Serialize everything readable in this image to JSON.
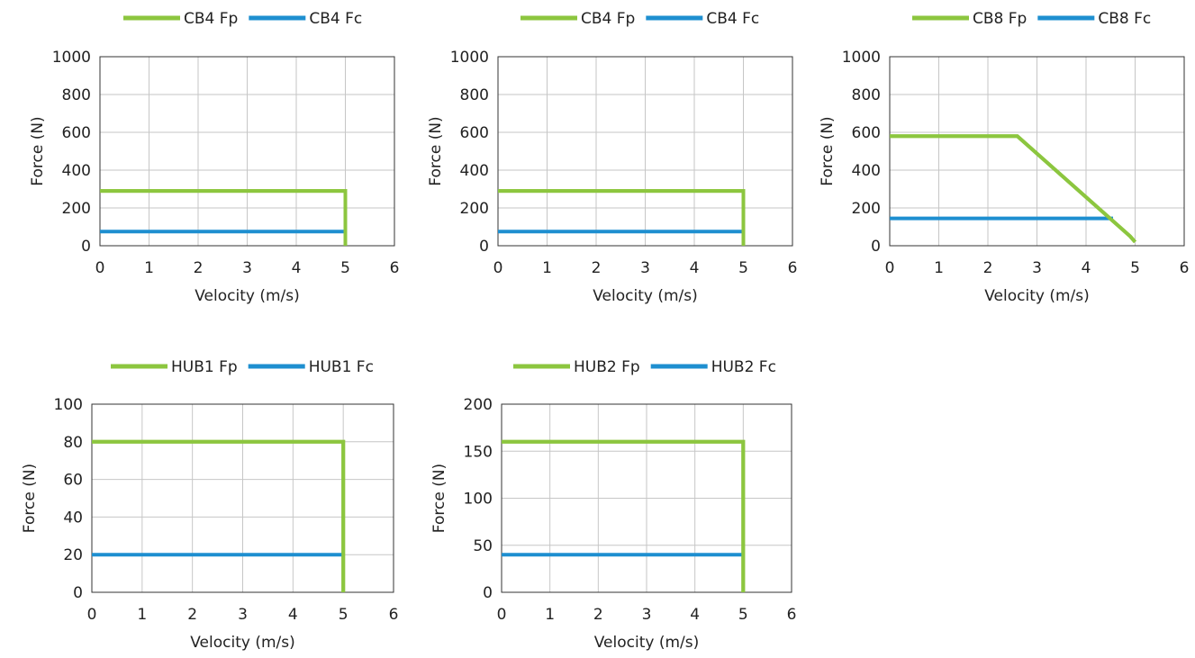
{
  "chart_data": [
    {
      "type": "line",
      "xlabel": "Velocity (m/s)",
      "ylabel": "Force (N)",
      "xlim": [
        0,
        6
      ],
      "ylim": [
        0,
        1000
      ],
      "xticks": [
        0,
        1,
        2,
        3,
        4,
        5,
        6
      ],
      "yticks": [
        0,
        200,
        400,
        600,
        800,
        1000
      ],
      "grid": true,
      "legend_position": "top",
      "series": [
        {
          "name": "CB4 Fp",
          "color": "#8cc63f",
          "points": [
            [
              0,
              290
            ],
            [
              5,
              290
            ],
            [
              5,
              0
            ]
          ]
        },
        {
          "name": "CB4 Fc",
          "color": "#1e8fd0",
          "points": [
            [
              0,
              75
            ],
            [
              5,
              75
            ]
          ]
        }
      ]
    },
    {
      "type": "line",
      "xlabel": "Velocity (m/s)",
      "ylabel": "Force (N)",
      "xlim": [
        0,
        6
      ],
      "ylim": [
        0,
        1000
      ],
      "xticks": [
        0,
        1,
        2,
        3,
        4,
        5,
        6
      ],
      "yticks": [
        0,
        200,
        400,
        600,
        800,
        1000
      ],
      "grid": true,
      "legend_position": "top",
      "series": [
        {
          "name": "CB4 Fp",
          "color": "#8cc63f",
          "points": [
            [
              0,
              290
            ],
            [
              5,
              290
            ],
            [
              5,
              0
            ]
          ]
        },
        {
          "name": "CB4 Fc",
          "color": "#1e8fd0",
          "points": [
            [
              0,
              75
            ],
            [
              5,
              75
            ]
          ]
        }
      ]
    },
    {
      "type": "line",
      "xlabel": "Velocity (m/s)",
      "ylabel": "Force (N)",
      "xlim": [
        0,
        6
      ],
      "ylim": [
        0,
        1000
      ],
      "xticks": [
        0,
        1,
        2,
        3,
        4,
        5,
        6
      ],
      "yticks": [
        0,
        200,
        400,
        600,
        800,
        1000
      ],
      "grid": true,
      "legend_position": "top",
      "series": [
        {
          "name": "CB8 Fp",
          "color": "#8cc63f",
          "points": [
            [
              0,
              580
            ],
            [
              2.6,
              580
            ],
            [
              4.9,
              50
            ],
            [
              5,
              20
            ]
          ]
        },
        {
          "name": "CB8 Fc",
          "color": "#1e8fd0",
          "points": [
            [
              0,
              145
            ],
            [
              4.55,
              145
            ]
          ]
        }
      ]
    },
    {
      "type": "line",
      "xlabel": "Velocity (m/s)",
      "ylabel": "Force (N)",
      "xlim": [
        0,
        6
      ],
      "ylim": [
        0,
        100
      ],
      "xticks": [
        0,
        1,
        2,
        3,
        4,
        5,
        6
      ],
      "yticks": [
        0,
        20,
        40,
        60,
        80,
        100
      ],
      "grid": true,
      "legend_position": "top",
      "series": [
        {
          "name": "HUB1 Fp",
          "color": "#8cc63f",
          "points": [
            [
              0,
              80
            ],
            [
              5,
              80
            ],
            [
              5,
              0
            ]
          ]
        },
        {
          "name": "HUB1 Fc",
          "color": "#1e8fd0",
          "points": [
            [
              0,
              20
            ],
            [
              5,
              20
            ]
          ]
        }
      ]
    },
    {
      "type": "line",
      "xlabel": "Velocity (m/s)",
      "ylabel": "Force (N)",
      "xlim": [
        0,
        6
      ],
      "ylim": [
        0,
        200
      ],
      "xticks": [
        0,
        1,
        2,
        3,
        4,
        5,
        6
      ],
      "yticks": [
        0,
        50,
        100,
        150,
        200
      ],
      "grid": true,
      "legend_position": "top",
      "series": [
        {
          "name": "HUB2 Fp",
          "color": "#8cc63f",
          "points": [
            [
              0,
              160
            ],
            [
              5,
              160
            ],
            [
              5,
              0
            ]
          ]
        },
        {
          "name": "HUB2 Fc",
          "color": "#1e8fd0",
          "points": [
            [
              0,
              40
            ],
            [
              5,
              40
            ]
          ]
        }
      ]
    }
  ]
}
